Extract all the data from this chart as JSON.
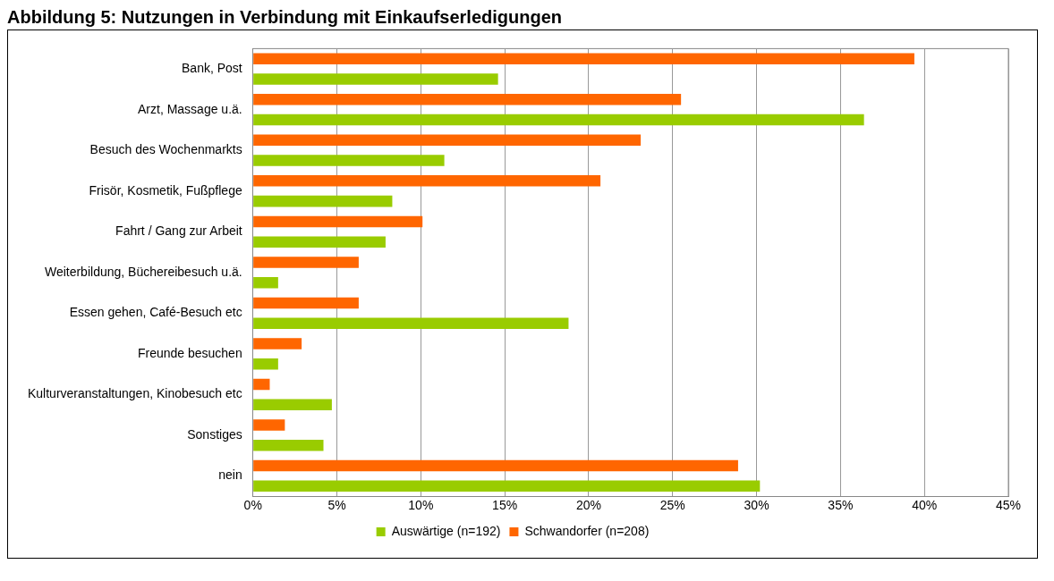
{
  "chart_data": {
    "type": "bar",
    "orientation": "horizontal",
    "title": "Abbildung 5: Nutzungen in Verbindung mit Einkaufserledigungen",
    "categories": [
      "Bank, Post",
      "Arzt, Massage u.ä.",
      "Besuch des Wochenmarkts",
      "Frisör, Kosmetik, Fußpflege",
      "Fahrt / Gang zur Arbeit",
      "Weiterbildung, Büchereibesuch u.ä.",
      "Essen gehen, Café-Besuch etc",
      "Freunde besuchen",
      "Kulturveranstaltungen, Kinobesuch etc",
      "Sonstiges",
      "nein"
    ],
    "series": [
      {
        "name": "Auswärtige (n=192)",
        "color": "#99cc00",
        "values": [
          14.6,
          36.4,
          11.4,
          8.3,
          7.9,
          1.5,
          18.8,
          1.5,
          4.7,
          4.2,
          30.2
        ]
      },
      {
        "name": "Schwandorfer (n=208)",
        "color": "#ff6600",
        "values": [
          39.4,
          25.5,
          23.1,
          20.7,
          10.1,
          6.3,
          6.3,
          2.9,
          1.0,
          1.9,
          28.9
        ]
      }
    ],
    "xlim": [
      0,
      45
    ],
    "xticks": [
      {
        "value": 0,
        "label": "0%"
      },
      {
        "value": 5,
        "label": "5%"
      },
      {
        "value": 10,
        "label": "10%"
      },
      {
        "value": 15,
        "label": "15%"
      },
      {
        "value": 20,
        "label": "20%"
      },
      {
        "value": 25,
        "label": "25%"
      },
      {
        "value": 30,
        "label": "30%"
      },
      {
        "value": 35,
        "label": "35%"
      },
      {
        "value": 40,
        "label": "40%"
      },
      {
        "value": 45,
        "label": "45%"
      }
    ],
    "grid": "x",
    "legend": "bottom"
  }
}
